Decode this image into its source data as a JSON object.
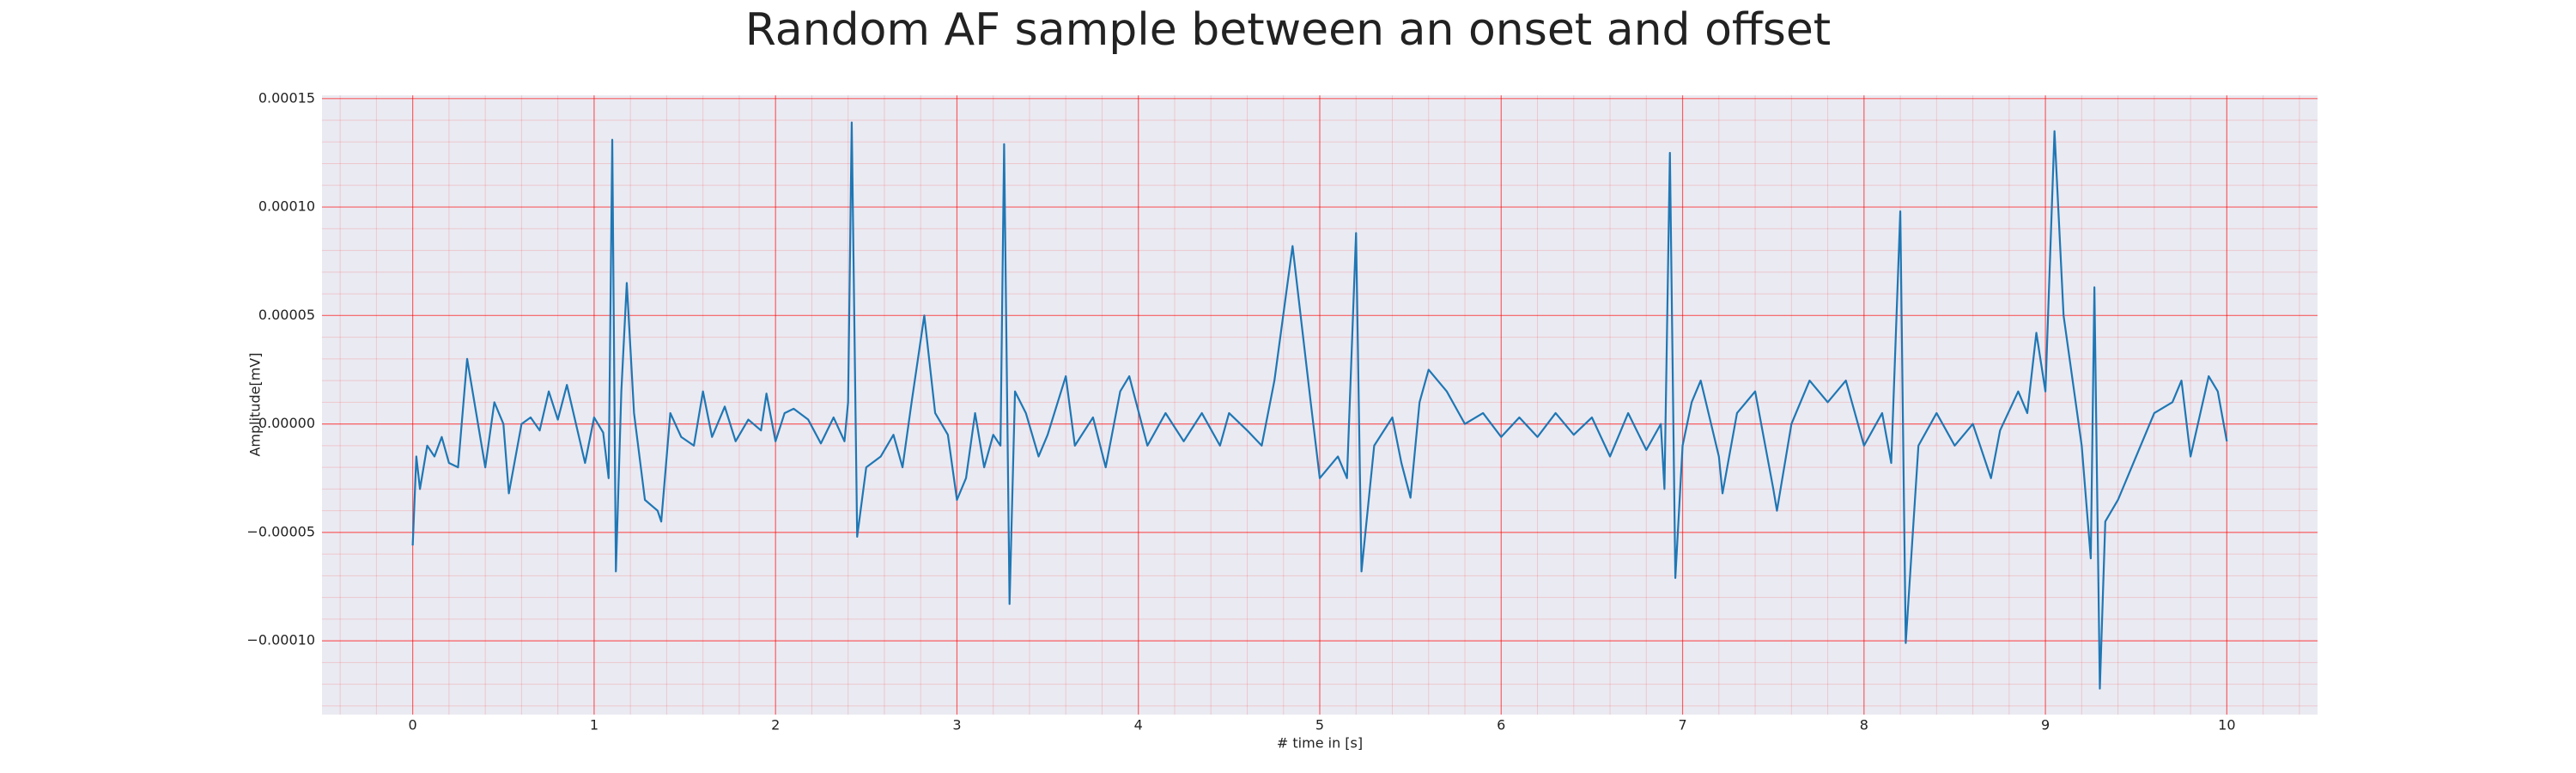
{
  "chart_data": {
    "type": "line",
    "title": "Random AF sample between an onset and offset",
    "xlabel": "# time in [s]",
    "ylabel": "Amplitude[mV]",
    "x": [
      0,
      0.02,
      0.04,
      0.08,
      0.12,
      0.16,
      0.2,
      0.25,
      0.3,
      0.35,
      0.4,
      0.45,
      0.5,
      0.53,
      0.6,
      0.65,
      0.7,
      0.75,
      0.8,
      0.85,
      0.9,
      0.95,
      1.0,
      1.05,
      1.08,
      1.1,
      1.12,
      1.15,
      1.18,
      1.22,
      1.28,
      1.35,
      1.37,
      1.42,
      1.48,
      1.55,
      1.6,
      1.65,
      1.72,
      1.78,
      1.85,
      1.92,
      1.95,
      2.0,
      2.05,
      2.1,
      2.18,
      2.25,
      2.32,
      2.38,
      2.4,
      2.42,
      2.45,
      2.5,
      2.58,
      2.65,
      2.7,
      2.75,
      2.82,
      2.88,
      2.95,
      3.0,
      3.05,
      3.1,
      3.15,
      3.2,
      3.24,
      3.26,
      3.29,
      3.32,
      3.38,
      3.45,
      3.5,
      3.6,
      3.65,
      3.75,
      3.82,
      3.9,
      3.95,
      4.05,
      4.15,
      4.25,
      4.35,
      4.45,
      4.5,
      4.6,
      4.68,
      4.75,
      4.85,
      4.95,
      5.0,
      5.1,
      5.15,
      5.2,
      5.23,
      5.3,
      5.4,
      5.45,
      5.5,
      5.55,
      5.6,
      5.7,
      5.8,
      5.9,
      6.0,
      6.1,
      6.2,
      6.3,
      6.4,
      6.5,
      6.6,
      6.7,
      6.8,
      6.88,
      6.9,
      6.93,
      6.96,
      7.0,
      7.05,
      7.1,
      7.2,
      7.22,
      7.3,
      7.4,
      7.5,
      7.52,
      7.6,
      7.7,
      7.8,
      7.9,
      8.0,
      8.1,
      8.15,
      8.2,
      8.23,
      8.3,
      8.4,
      8.5,
      8.6,
      8.7,
      8.75,
      8.85,
      8.9,
      8.95,
      9.0,
      9.05,
      9.1,
      9.2,
      9.25,
      9.27,
      9.3,
      9.33,
      9.4,
      9.5,
      9.6,
      9.7,
      9.75,
      9.8,
      9.9,
      9.95,
      10.0
    ],
    "series": [
      {
        "color": "#1f77b4",
        "values": [
          -5.6e-05,
          -1.5e-05,
          -3e-05,
          -1e-05,
          -1.5e-05,
          -6e-06,
          -1.8e-05,
          -2e-05,
          3e-05,
          5e-06,
          -2e-05,
          1e-05,
          0.0,
          -3.2e-05,
          0.0,
          3e-06,
          -3e-06,
          1.5e-05,
          2e-06,
          1.8e-05,
          0.0,
          -1.8e-05,
          3e-06,
          -4e-06,
          -2.5e-05,
          0.000131,
          -6.8e-05,
          1.5e-05,
          6.5e-05,
          5e-06,
          -3.5e-05,
          -4e-05,
          -4.5e-05,
          5e-06,
          -6e-06,
          -1e-05,
          1.5e-05,
          -6e-06,
          8e-06,
          -8e-06,
          2e-06,
          -3e-06,
          1.4e-05,
          -8e-06,
          5e-06,
          7e-06,
          2e-06,
          -9e-06,
          3e-06,
          -8e-06,
          1e-05,
          0.000139,
          -5.2e-05,
          -2e-05,
          -1.5e-05,
          -5e-06,
          -2e-05,
          1e-05,
          5e-05,
          5e-06,
          -5e-06,
          -3.5e-05,
          -2.5e-05,
          5e-06,
          -2e-05,
          -5e-06,
          -1e-05,
          0.000129,
          -8.3e-05,
          1.5e-05,
          5e-06,
          -1.5e-05,
          -5e-06,
          2.2e-05,
          -1e-05,
          3e-06,
          -2e-05,
          1.5e-05,
          2.2e-05,
          -1e-05,
          5e-06,
          -8e-06,
          5e-06,
          -1e-05,
          5e-06,
          -3e-06,
          -1e-05,
          2e-05,
          8.2e-05,
          1e-05,
          -2.5e-05,
          -1.5e-05,
          -2.5e-05,
          8.8e-05,
          -6.8e-05,
          -1e-05,
          3e-06,
          -1.8e-05,
          -3.4e-05,
          1e-05,
          2.5e-05,
          1.5e-05,
          0.0,
          5e-06,
          -6e-06,
          3e-06,
          -6e-06,
          5e-06,
          -5e-06,
          3e-06,
          -1.5e-05,
          5e-06,
          -1.2e-05,
          0.0,
          -3e-05,
          0.000125,
          -7.1e-05,
          -1e-05,
          1e-05,
          2e-05,
          -1.5e-05,
          -3.2e-05,
          5e-06,
          1.5e-05,
          -3e-05,
          -4e-05,
          0.0,
          2e-05,
          1e-05,
          2e-05,
          -1e-05,
          5e-06,
          -1.8e-05,
          9.8e-05,
          -0.000101,
          -1e-05,
          5e-06,
          -1e-05,
          0.0,
          -2.5e-05,
          -3e-06,
          1.5e-05,
          5e-06,
          4.2e-05,
          1.5e-05,
          0.000135,
          5e-05,
          -1e-05,
          -6.2e-05,
          6.3e-05,
          -0.000122,
          -4.5e-05,
          -3.5e-05,
          -1.5e-05,
          5e-06,
          1e-05,
          2e-05,
          -1.5e-05,
          2.2e-05,
          1.5e-05,
          -8e-06
        ]
      }
    ],
    "xlim": [
      -0.5,
      10.5
    ],
    "ylim": [
      -0.000134,
      0.0001515
    ],
    "xticks": [
      0,
      1,
      2,
      3,
      4,
      5,
      6,
      7,
      8,
      9,
      10
    ],
    "yticks": [
      {
        "value": -0.0001,
        "label": "−0.00010"
      },
      {
        "value": -5e-05,
        "label": "−0.00005"
      },
      {
        "value": 0,
        "label": "0.00000"
      },
      {
        "value": 5e-05,
        "label": "0.00005"
      },
      {
        "value": 0.0001,
        "label": "0.00010"
      },
      {
        "value": 0.00015,
        "label": "0.00015"
      }
    ],
    "grid": true,
    "grid_color": "#ff0000",
    "minor_grid": true
  }
}
